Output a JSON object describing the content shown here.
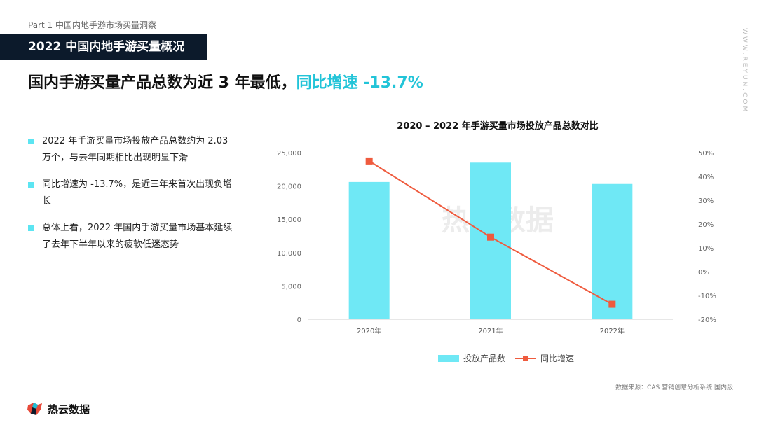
{
  "header": {
    "part": "Part 1  中国内地手游市场买量洞察",
    "banner": "2022 中国内地手游买量概况",
    "headline_main": "国内手游买量产品总数为近 3 年最低，",
    "headline_highlight": "同比增速 -13.7%",
    "side_text": "WWW.REYUN.COM"
  },
  "bullets": [
    {
      "text": "2022 年手游买量市场投放产品总数约为 2.03 万个，与去年同期相比出现明显下滑"
    },
    {
      "text": "同比增速为 -13.7%，是近三年来首次出现负增长"
    },
    {
      "text": "总体上看，2022 年国内手游买量市场基本延续了去年下半年以来的疲软低迷态势"
    }
  ],
  "chart_data": {
    "type": "bar",
    "title": "2020 – 2022 年手游买量市场投放产品总数对比",
    "categories": [
      "2020年",
      "2021年",
      "2022年"
    ],
    "series": [
      {
        "name": "投放产品数",
        "type": "bar",
        "axis": "left",
        "values": [
          20600,
          23500,
          20300
        ]
      },
      {
        "name": "同比增速",
        "type": "line",
        "axis": "right",
        "values": [
          46.5,
          14.5,
          -13.7
        ]
      }
    ],
    "left_axis": {
      "ylim": [
        0,
        25000
      ],
      "ticks": [
        "0",
        "5,000",
        "10,000",
        "15,000",
        "20,000",
        "25,000"
      ]
    },
    "right_axis": {
      "ylim": [
        -20,
        50
      ],
      "ticks": [
        "-20%",
        "-10%",
        "0%",
        "10%",
        "20%",
        "30%",
        "40%",
        "50%"
      ]
    },
    "watermark": "热云数据",
    "legend_position": "bottom-center",
    "colors": {
      "bar": "#6fe8f5",
      "line": "#ef5b3e"
    }
  },
  "footer": {
    "source": "数据来源：CAS 营销创意分析系统 国内版",
    "logo_text": "热云数据"
  }
}
